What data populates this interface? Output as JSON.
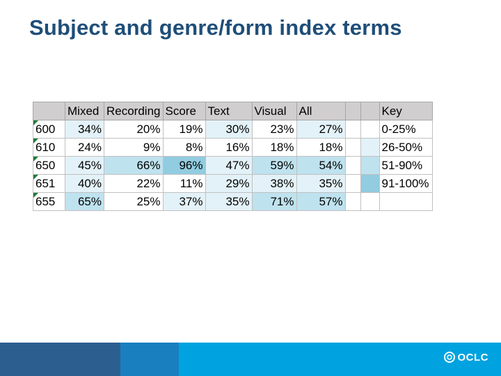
{
  "slide": {
    "title": "Subject and genre/form index terms"
  },
  "table": {
    "headers": [
      "",
      "Mixed",
      "Recording",
      "Score",
      "Text",
      "Visual",
      "All",
      "",
      "",
      "Key"
    ],
    "rows": [
      {
        "tag": "600",
        "values": [
          "34%",
          "20%",
          "19%",
          "30%",
          "23%",
          "27%"
        ],
        "levels": [
          1,
          0,
          0,
          1,
          0,
          1
        ],
        "key_level": 0,
        "key": "0-25%"
      },
      {
        "tag": "610",
        "values": [
          "24%",
          "9%",
          "8%",
          "16%",
          "18%",
          "18%"
        ],
        "levels": [
          0,
          0,
          0,
          0,
          0,
          0
        ],
        "key_level": 1,
        "key": "26-50%"
      },
      {
        "tag": "650",
        "values": [
          "45%",
          "66%",
          "96%",
          "47%",
          "59%",
          "54%"
        ],
        "levels": [
          1,
          2,
          3,
          1,
          2,
          2
        ],
        "key_level": 2,
        "key": "51-90%"
      },
      {
        "tag": "651",
        "values": [
          "40%",
          "22%",
          "11%",
          "29%",
          "38%",
          "35%"
        ],
        "levels": [
          1,
          0,
          0,
          1,
          1,
          1
        ],
        "key_level": 3,
        "key": "91-100%"
      },
      {
        "tag": "655",
        "values": [
          "65%",
          "25%",
          "37%",
          "35%",
          "71%",
          "57%"
        ],
        "levels": [
          2,
          0,
          1,
          1,
          2,
          2
        ],
        "key_level": null,
        "key": ""
      }
    ]
  },
  "colors": {
    "title": "#1f4e79",
    "level_0": "#ffffff",
    "level_1": "#e3f2f8",
    "level_2": "#bfe2ef",
    "level_3": "#92cce0"
  },
  "footer": {
    "logo_text": "OCLC",
    "logo_icon": "oclc-logo-icon"
  }
}
